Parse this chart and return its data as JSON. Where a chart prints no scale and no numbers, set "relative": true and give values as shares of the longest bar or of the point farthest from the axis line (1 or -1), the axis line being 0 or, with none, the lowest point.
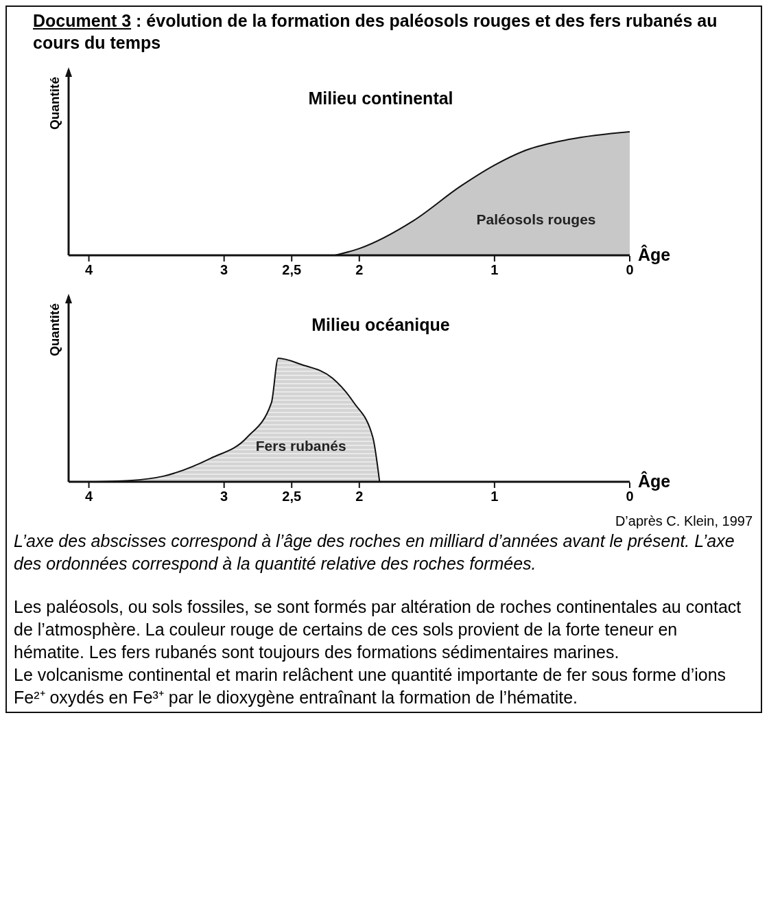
{
  "chart_data": [
    {
      "type": "other",
      "title": "Document 3",
      "subtitle": ": évolution de la formation des paléosols rouges et des fers rubanés au cours du temps"
    },
    {
      "type": "area",
      "title": "Milieu continental",
      "xlabel": "Âge",
      "ylabel": "Quantité",
      "relative": true,
      "xlim": [
        4.15,
        0
      ],
      "xticks": [
        4,
        3,
        {
          "value": 2.5,
          "label": "2,5"
        },
        2,
        1,
        0
      ],
      "legend": false,
      "marker": "none",
      "grid": false,
      "series": [
        {
          "name": "Paléosols rouges",
          "color": "#c8c8c8",
          "x": [
            2.18,
            2,
            1.6,
            1.25,
            1,
            0.77,
            0.44,
            0
          ],
          "values": [
            0,
            0.055,
            0.28,
            0.56,
            0.73,
            0.85,
            0.94,
            1
          ]
        }
      ]
    },
    {
      "type": "area",
      "title": "Milieu océanique",
      "xlabel": "Âge",
      "ylabel": "Quantité",
      "relative": true,
      "xlim": [
        4.15,
        0
      ],
      "xticks": [
        4,
        3,
        {
          "value": 2.5,
          "label": "2,5"
        },
        2,
        1,
        0
      ],
      "legend": false,
      "marker": "none",
      "grid": false,
      "series": [
        {
          "name": "Fers rubanés",
          "color": "#d4d4d4",
          "x": [
            4,
            3.7,
            3.45,
            3.1,
            2.83,
            2.65,
            2.6,
            2.43,
            2.2,
            2.04,
            1.9,
            1.85
          ],
          "values": [
            0,
            0.01,
            0.045,
            0.19,
            0.36,
            0.64,
            1,
            0.95,
            0.84,
            0.64,
            0.36,
            0
          ]
        }
      ]
    },
    {
      "type": "other",
      "annotations": [
        "D’après C. Klein, 1997",
        "L’axe des abscisses correspond à l’âge des roches en milliard d’années avant le présent. L’axe des ordonnées correspond à la quantité relative des roches formées.",
        "Les paléosols, ou sols fossiles, se sont formés par altération de roches continentales au contact de l’atmosphère. La couleur rouge de certains de ces sols provient de la forte teneur en hématite. Les fers rubanés sont toujours des formations sédimentaires marines.",
        "Le volcanisme continental et marin relâchent une quantité importante de fer sous forme d’ions Fe²⁺ oxydés en Fe³⁺ par le dioxygène entraînant la formation de l’hématite."
      ]
    }
  ]
}
